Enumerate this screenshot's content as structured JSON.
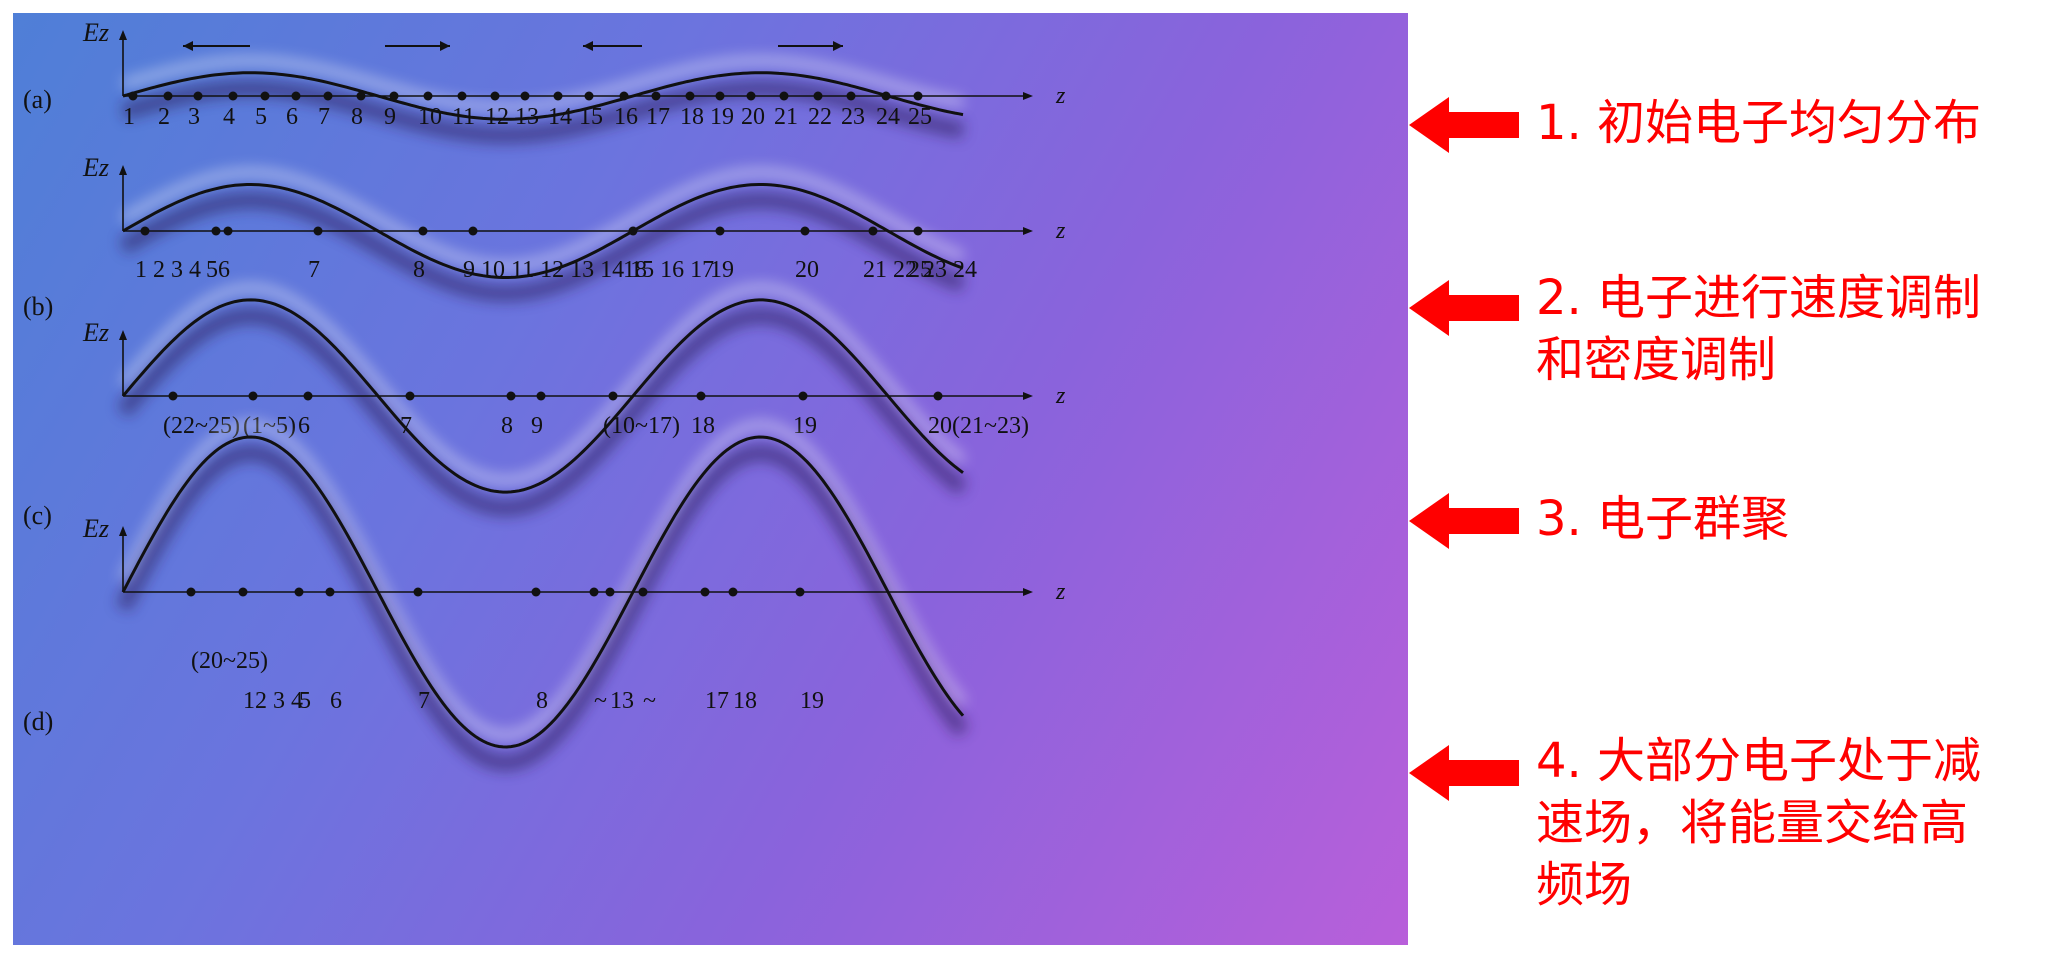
{
  "rows": [
    {
      "id": "a",
      "label": "(a)",
      "e_label": "Ez",
      "z_label": "z",
      "amplitude": 0.15,
      "arrows": [
        "left",
        "right",
        "left",
        "right"
      ],
      "label_groups": [
        "1",
        "2",
        "3",
        "4",
        "5",
        "6",
        "7",
        "8",
        "9",
        "10",
        "11",
        "12",
        "13",
        "14",
        "15",
        "16",
        "17",
        "18",
        "19",
        "20",
        "21",
        "22",
        "23",
        "24",
        "25"
      ],
      "annotation": "1. 初始电子均匀分布"
    },
    {
      "id": "b",
      "label": "(b)",
      "e_label": "Ez",
      "z_label": "z",
      "amplitude": 0.3,
      "label_groups": [
        "1 2 3 4",
        "5",
        "6",
        "7",
        "8",
        "9 10 11 12 13 14 15 16 17",
        "18",
        "19",
        "20",
        "21 22 23 24",
        "25"
      ],
      "annotation": "2. 电子进行速度调制和密度调制"
    },
    {
      "id": "c",
      "label": "(c)",
      "e_label": "Ez",
      "z_label": "z",
      "amplitude": 0.62,
      "label_groups": [
        "(22~25)",
        "(1~5)",
        "6",
        "7",
        "8",
        "9",
        "(10~17)",
        "18",
        "19",
        "20(21~23)"
      ],
      "annotation": "3. 电子群聚"
    },
    {
      "id": "d",
      "label": "(d)",
      "e_label": "Ez",
      "z_label": "z",
      "amplitude": 1.0,
      "label_groups": [
        "(20~25)",
        "12 3 4",
        "5",
        "6",
        "7",
        "8",
        "~",
        "13",
        "~",
        "17",
        "18",
        "19"
      ],
      "annotation": "4. 大部分电子处于减速场，将能量交给高频场"
    }
  ],
  "colors": {
    "annotation": "#ff0000",
    "axis": "#111111"
  }
}
